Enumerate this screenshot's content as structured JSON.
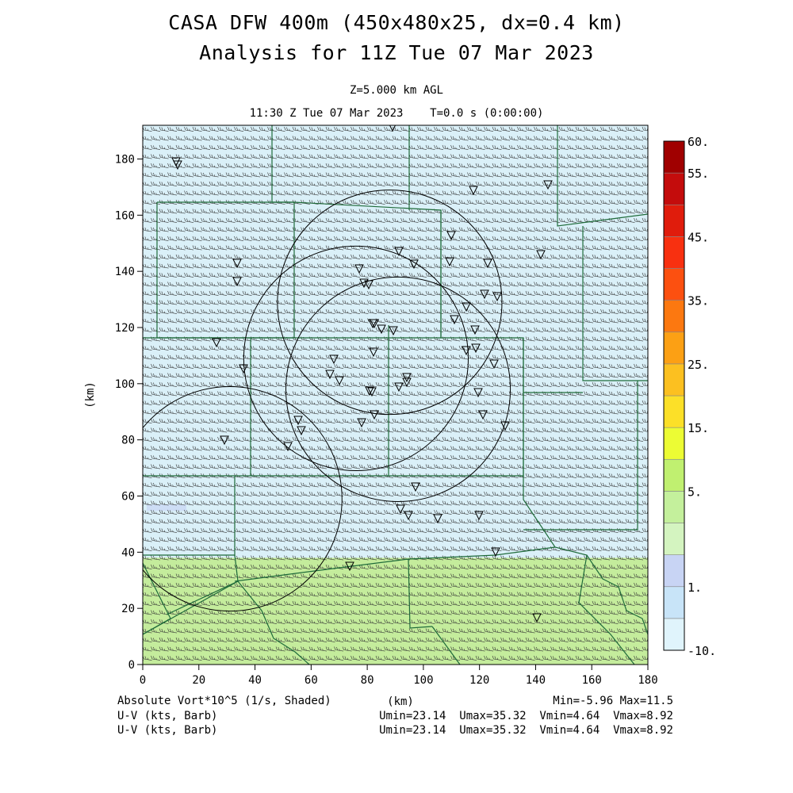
{
  "header": {
    "title_line1": "CASA DFW 400m (450x480x25, dx=0.4 km)",
    "title_line2": "Analysis for 11Z Tue 07 Mar 2023",
    "level": "Z=5.000 km AGL",
    "time": "11:30 Z Tue 07 Mar 2023    T=0.0 s (0:00:00)"
  },
  "axes": {
    "x_ticks": [
      "0",
      "20",
      "40",
      "60",
      "80",
      "100",
      "120",
      "140",
      "160",
      "180"
    ],
    "y_ticks": [
      "0",
      "20",
      "40",
      "60",
      "80",
      "100",
      "120",
      "140",
      "160",
      "180"
    ],
    "x_label": "(km)",
    "y_label": "(km)",
    "x_range": [
      0,
      180
    ],
    "y_range": [
      0,
      192
    ]
  },
  "colorbar": {
    "labels": [
      "60.",
      "55.",
      "45.",
      "35.",
      "25.",
      "15.",
      "5.",
      "1.",
      "-10."
    ],
    "colors": [
      "#e0f4fc",
      "#c8e4f8",
      "#c8d4f4",
      "#d4f4c0",
      "#c4f09c",
      "#c0f070",
      "#ecfc34",
      "#fce028",
      "#fcc020",
      "#fca014",
      "#fc7810",
      "#fc5010",
      "#f83010",
      "#e01c0c",
      "#c40c0c",
      "#a00000"
    ]
  },
  "footer": {
    "field_label": "Absolute Vort*10^5 (1/s, Shaded)",
    "xunit": "(km)",
    "minmax": "Min=-5.96 Max=11.5",
    "barb1_label": "U-V (kts, Barb)",
    "barb1_stats": "Umin=23.14  Umax=35.32  Vmin=4.64  Vmax=8.92",
    "barb2_label": "U-V (kts, Barb)",
    "barb2_stats": "Umin=23.14  Umax=35.32  Vmin=4.64  Vmax=8.92"
  },
  "map": {
    "radar_rings_center_km": [
      [
        31,
        59
      ],
      [
        88,
        129
      ],
      [
        76,
        109
      ],
      [
        91,
        98
      ]
    ],
    "field_colors": {
      "upper": "#daf0f8",
      "lower": "#c4ec9c",
      "blue_patch": "#c8d4f4",
      "border": "#1f6b3a"
    }
  }
}
